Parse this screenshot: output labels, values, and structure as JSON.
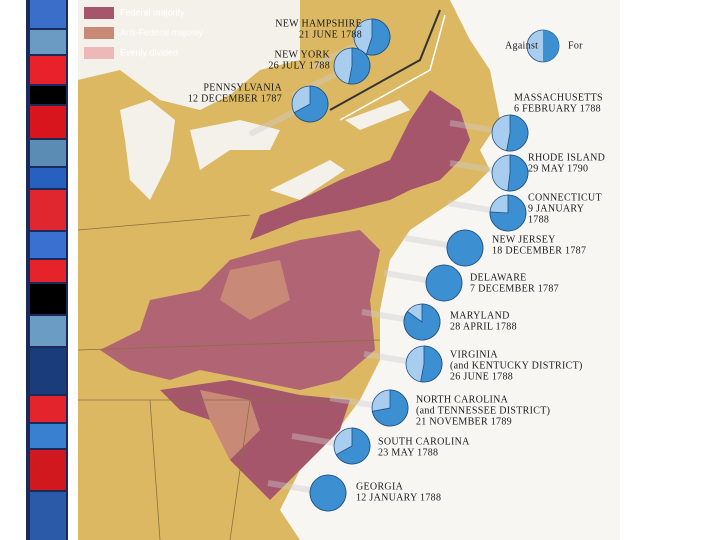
{
  "legend": [
    {
      "label": "Federal majority",
      "color": "#a5566a"
    },
    {
      "label": "Anti-Federal majority",
      "color": "#c88a76"
    },
    {
      "label": "Evenly divided",
      "color": "#ecb8b8"
    }
  ],
  "key": {
    "against": "Against",
    "for": "For",
    "for_color": "#3c8fd0",
    "against_color": "#a9cdef"
  },
  "states": [
    {
      "lines": [
        "NEW HAMPSHIRE",
        "21 JUNE 1788"
      ],
      "for_percent": 55
    },
    {
      "lines": [
        "NEW YORK",
        "26 JULY 1788"
      ],
      "for_percent": 53
    },
    {
      "lines": [
        "PENNSYLVANIA",
        "12 DECEMBER 1787"
      ],
      "for_percent": 67
    },
    {
      "lines": [
        "MASSACHUSETTS",
        "6 FEBRUARY 1788"
      ],
      "for_percent": 53
    },
    {
      "lines": [
        "RHODE ISLAND",
        "29 MAY 1790"
      ],
      "for_percent": 52
    },
    {
      "lines": [
        "CONNECTICUT",
        "9 JANUARY",
        "1788"
      ],
      "for_percent": 76
    },
    {
      "lines": [
        "NEW JERSEY",
        "18 DECEMBER 1787"
      ],
      "for_percent": 100
    },
    {
      "lines": [
        "DELAWARE",
        "7 DECEMBER 1787"
      ],
      "for_percent": 100
    },
    {
      "lines": [
        "MARYLAND",
        "28 APRIL 1788"
      ],
      "for_percent": 85
    },
    {
      "lines": [
        "VIRGINIA",
        "(and KENTUCKY DISTRICT)",
        "26 JUNE 1788"
      ],
      "for_percent": 53
    },
    {
      "lines": [
        "NORTH CAROLINA",
        "(and TENNESSEE DISTRICT)",
        "21 NOVEMBER 1789"
      ],
      "for_percent": 72
    },
    {
      "lines": [
        "SOUTH CAROLINA",
        "23 MAY 1788"
      ],
      "for_percent": 67
    },
    {
      "lines": [
        "GEORGIA",
        "12 JANUARY 1788"
      ],
      "for_percent": 100
    }
  ]
}
